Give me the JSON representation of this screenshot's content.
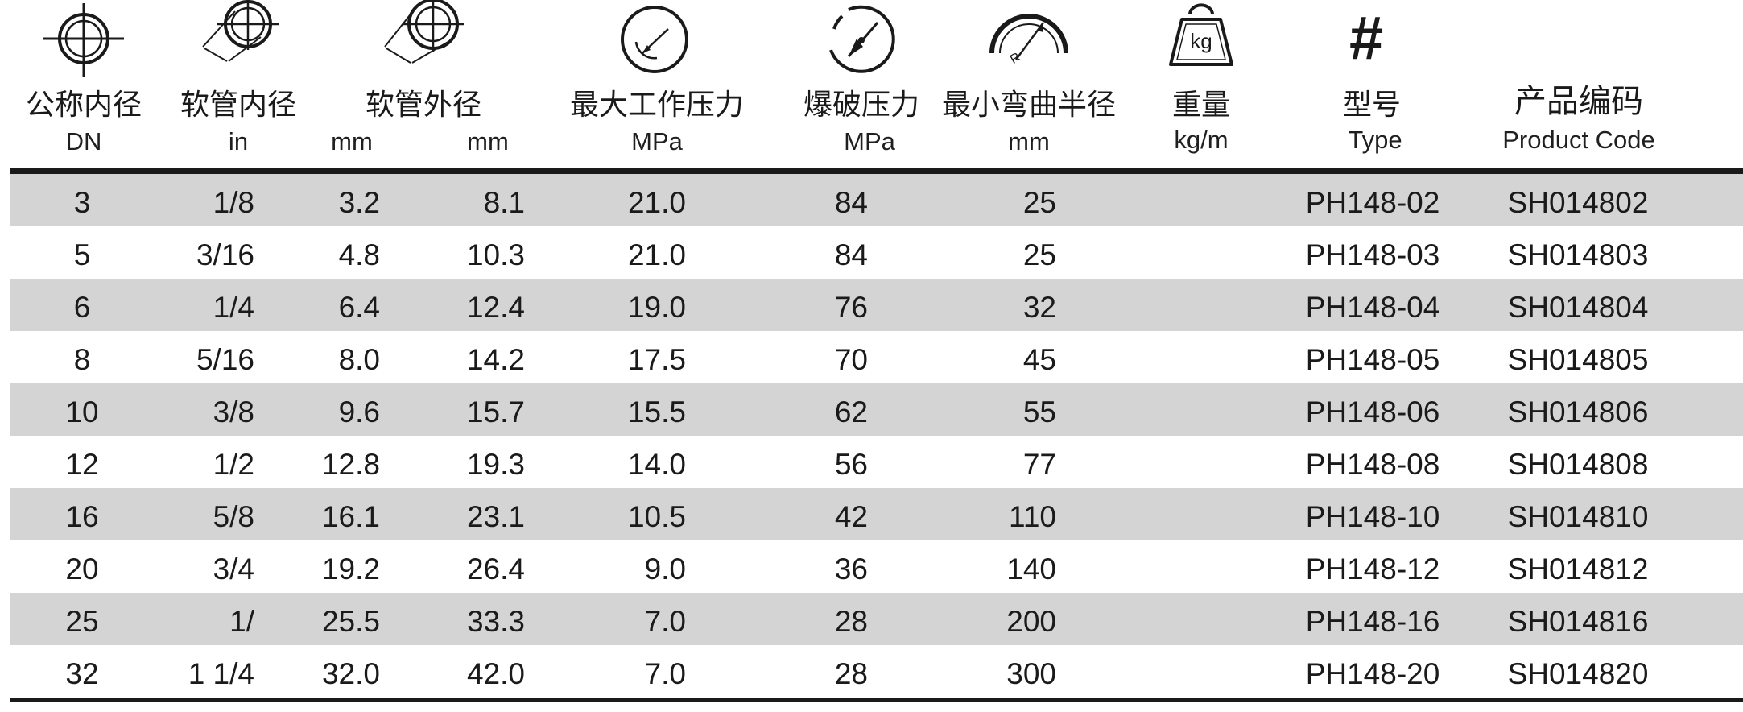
{
  "header": {
    "columns": [
      {
        "key": "dn",
        "icon": "crosshair-circle-icon",
        "label_cn": "公称内径",
        "unit": "DN"
      },
      {
        "key": "id_in",
        "icon": "inner-diameter-icon",
        "label_cn": "软管内径",
        "unit": "in"
      },
      {
        "key": "id_mm",
        "icon": "",
        "label_cn": "",
        "unit": "mm"
      },
      {
        "key": "od_mm",
        "icon": "outer-diameter-icon",
        "label_cn": "软管外径",
        "unit": "mm"
      },
      {
        "key": "wp",
        "icon": "pressure-gauge-icon",
        "label_cn": "最大工作压力",
        "unit": "MPa"
      },
      {
        "key": "bp",
        "icon": "burst-gauge-icon",
        "label_cn": "爆破压力",
        "unit": "MPa"
      },
      {
        "key": "br",
        "icon": "bend-radius-icon",
        "label_cn": "最小弯曲半径",
        "unit": "mm"
      },
      {
        "key": "wt",
        "icon": "weight-kg-icon",
        "label_cn": "重量",
        "unit": "kg/m"
      },
      {
        "key": "type",
        "icon": "hash-icon",
        "label_cn": "型号",
        "unit": "Type"
      },
      {
        "key": "code",
        "icon": "",
        "label_cn": "产品编码",
        "unit": "Product Code"
      }
    ],
    "weight_icon_text": "kg",
    "hash_glyph": "#"
  },
  "rows": [
    {
      "dn": "3",
      "id_in": "1/8",
      "id_mm": "3.2",
      "od_mm": "8.1",
      "wp": "21.0",
      "bp": "84",
      "br": "25",
      "type": "PH148-02",
      "code": "SH014802"
    },
    {
      "dn": "5",
      "id_in": "3/16",
      "id_mm": "4.8",
      "od_mm": "10.3",
      "wp": "21.0",
      "bp": "84",
      "br": "25",
      "type": "PH148-03",
      "code": "SH014803"
    },
    {
      "dn": "6",
      "id_in": "1/4",
      "id_mm": "6.4",
      "od_mm": "12.4",
      "wp": "19.0",
      "bp": "76",
      "br": "32",
      "type": "PH148-04",
      "code": "SH014804"
    },
    {
      "dn": "8",
      "id_in": "5/16",
      "id_mm": "8.0",
      "od_mm": "14.2",
      "wp": "17.5",
      "bp": "70",
      "br": "45",
      "type": "PH148-05",
      "code": "SH014805"
    },
    {
      "dn": "10",
      "id_in": "3/8",
      "id_mm": "9.6",
      "od_mm": "15.7",
      "wp": "15.5",
      "bp": "62",
      "br": "55",
      "type": "PH148-06",
      "code": "SH014806"
    },
    {
      "dn": "12",
      "id_in": "1/2",
      "id_mm": "12.8",
      "od_mm": "19.3",
      "wp": "14.0",
      "bp": "56",
      "br": "77",
      "type": "PH148-08",
      "code": "SH014808"
    },
    {
      "dn": "16",
      "id_in": "5/8",
      "id_mm": "16.1",
      "od_mm": "23.1",
      "wp": "10.5",
      "bp": "42",
      "br": "110",
      "type": "PH148-10",
      "code": "SH014810"
    },
    {
      "dn": "20",
      "id_in": "3/4",
      "id_mm": "19.2",
      "od_mm": "26.4",
      "wp": "9.0",
      "bp": "36",
      "br": "140",
      "type": "PH148-12",
      "code": "SH014812"
    },
    {
      "dn": "25",
      "id_in": "1/",
      "id_mm": "25.5",
      "od_mm": "33.3",
      "wp": "7.0",
      "bp": "28",
      "br": "200",
      "type": "PH148-16",
      "code": "SH014816"
    },
    {
      "dn": "32",
      "id_in": "1 1/4",
      "id_mm": "32.0",
      "od_mm": "42.0",
      "wp": "7.0",
      "bp": "28",
      "br": "300",
      "type": "PH148-20",
      "code": "SH014820"
    }
  ]
}
